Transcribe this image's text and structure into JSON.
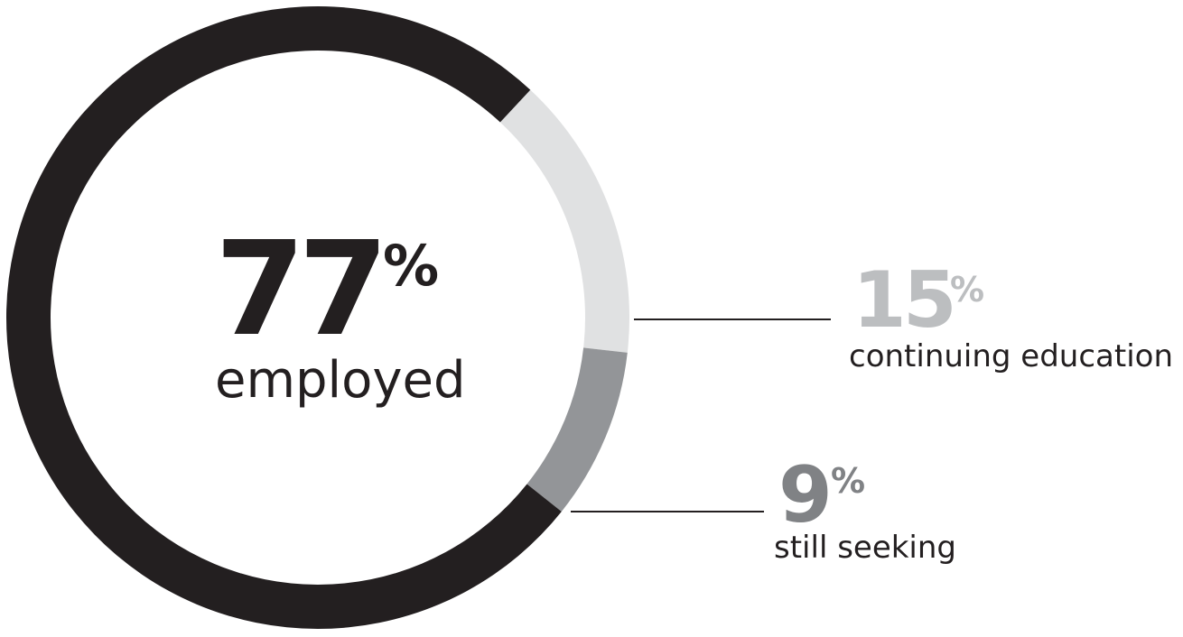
{
  "chart_data": {
    "type": "pie",
    "style": "donut",
    "series": [
      {
        "name": "employed",
        "value": 77,
        "display": "77",
        "unit": "%",
        "color": "#231f20"
      },
      {
        "name": "continuing education",
        "value": 15,
        "display": "15",
        "unit": "%",
        "color": "#e0e1e2"
      },
      {
        "name": "still seeking",
        "value": 9,
        "display": "9",
        "unit": "%",
        "color": "#939598"
      }
    ],
    "background": "#ffffff",
    "leader_color": "#231f20"
  }
}
